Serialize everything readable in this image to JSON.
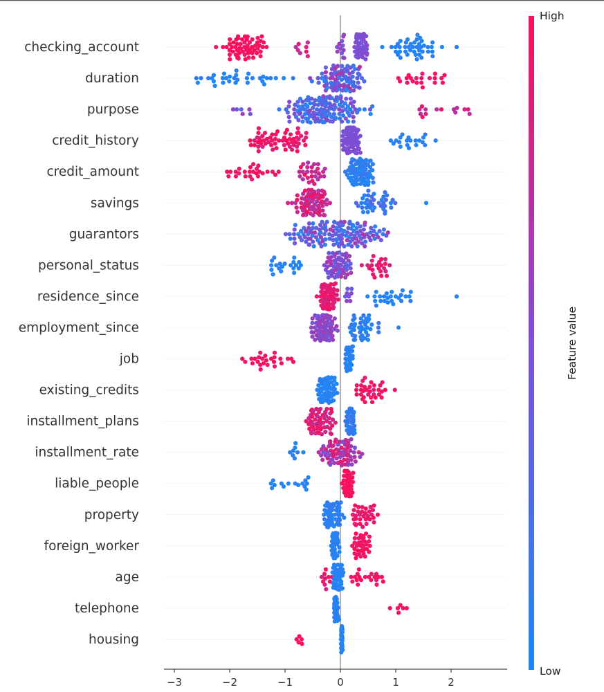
{
  "chart_data": {
    "type": "scatter",
    "subtype": "beeswarm",
    "title": "",
    "xlabel": "",
    "xlim": [
      -3.3,
      2.95
    ],
    "xticks": [
      -3,
      -2,
      -1,
      0,
      1,
      2
    ],
    "xtick_labels": [
      "−3",
      "−2",
      "−1",
      "0",
      "1",
      "2"
    ],
    "colorbar": {
      "label": "Feature value",
      "high_label": "High",
      "low_label": "Low",
      "low_color": "#1e88f5",
      "mid_color": "#7c4fd6",
      "high_color": "#ff0d57"
    },
    "features": [
      {
        "name": "checking_account",
        "groups": [
          {
            "range": [
              -2.4,
              -1.1
            ],
            "n": 60,
            "fv": 0.97,
            "spread": 0.05
          },
          {
            "range": [
              -1.0,
              -0.4
            ],
            "n": 8,
            "fv": 0.8,
            "spread": 0.1
          },
          {
            "range": [
              -0.1,
              0.15
            ],
            "n": 12,
            "fv": 0.55,
            "spread": 0.1
          },
          {
            "range": [
              0.2,
              0.55
            ],
            "n": 60,
            "fv": 0.5,
            "spread": 0.05
          },
          {
            "range": [
              0.6,
              1.9
            ],
            "n": 42,
            "fv": 0.05,
            "spread": 0.05
          },
          {
            "range": [
              2.1,
              2.12
            ],
            "n": 1,
            "fv": 0.05,
            "spread": 0
          }
        ]
      },
      {
        "name": "duration",
        "groups": [
          {
            "range": [
              -2.9,
              -0.7
            ],
            "n": 32,
            "fv": 0.05,
            "spread": 0.05
          },
          {
            "range": [
              -0.6,
              0.6
            ],
            "n": 95,
            "fv": 0.4,
            "spread": 0.35
          },
          {
            "range": [
              0.6,
              2.2
            ],
            "n": 20,
            "fv": 0.95,
            "spread": 0.05
          }
        ]
      },
      {
        "name": "purpose",
        "groups": [
          {
            "range": [
              -2.1,
              -1.4
            ],
            "n": 6,
            "fv": 0.5,
            "spread": 0.15
          },
          {
            "range": [
              -1.4,
              0.8
            ],
            "n": 150,
            "fv": 0.3,
            "spread": 0.3
          },
          {
            "range": [
              0.8,
              2.7
            ],
            "n": 14,
            "fv": 0.85,
            "spread": 0.15
          }
        ]
      },
      {
        "name": "credit_history",
        "groups": [
          {
            "range": [
              -1.95,
              -0.3
            ],
            "n": 60,
            "fv": 0.92,
            "spread": 0.08
          },
          {
            "range": [
              -0.05,
              0.4
            ],
            "n": 85,
            "fv": 0.5,
            "spread": 0.03
          },
          {
            "range": [
              0.45,
              1.95
            ],
            "n": 20,
            "fv": 0.05,
            "spread": 0.03
          }
        ]
      },
      {
        "name": "credit_amount",
        "groups": [
          {
            "range": [
              -2.4,
              -0.9
            ],
            "n": 25,
            "fv": 0.95,
            "spread": 0.05
          },
          {
            "range": [
              -0.9,
              -0.1
            ],
            "n": 28,
            "fv": 0.8,
            "spread": 0.15
          },
          {
            "range": [
              0.0,
              0.7
            ],
            "n": 85,
            "fv": 0.08,
            "spread": 0.08
          }
        ]
      },
      {
        "name": "savings",
        "groups": [
          {
            "range": [
              -1.0,
              0.0
            ],
            "n": 85,
            "fv": 0.82,
            "spread": 0.18
          },
          {
            "range": [
              0.2,
              1.1
            ],
            "n": 38,
            "fv": 0.15,
            "spread": 0.15
          },
          {
            "range": [
              1.55,
              1.56
            ],
            "n": 1,
            "fv": 0.05,
            "spread": 0
          }
        ]
      },
      {
        "name": "guarantors",
        "groups": [
          {
            "range": [
              -1.2,
              1.1
            ],
            "n": 140,
            "fv": 0.35,
            "spread": 0.35
          }
        ]
      },
      {
        "name": "personal_status",
        "groups": [
          {
            "range": [
              -1.6,
              -0.4
            ],
            "n": 20,
            "fv": 0.05,
            "spread": 0.05
          },
          {
            "range": [
              -0.4,
              0.3
            ],
            "n": 65,
            "fv": 0.5,
            "spread": 0.2
          },
          {
            "range": [
              0.3,
              1.1
            ],
            "n": 22,
            "fv": 0.9,
            "spread": 0.08
          }
        ]
      },
      {
        "name": "residence_since",
        "groups": [
          {
            "range": [
              -0.45,
              0.0
            ],
            "n": 85,
            "fv": 0.9,
            "spread": 0.08
          },
          {
            "range": [
              0.0,
              0.3
            ],
            "n": 8,
            "fv": 0.5,
            "spread": 0.1
          },
          {
            "range": [
              0.3,
              1.55
            ],
            "n": 25,
            "fv": 0.05,
            "spread": 0.05
          },
          {
            "range": [
              2.1,
              2.11
            ],
            "n": 1,
            "fv": 0.05,
            "spread": 0
          }
        ]
      },
      {
        "name": "employment_since",
        "groups": [
          {
            "range": [
              -0.6,
              0.0
            ],
            "n": 85,
            "fv": 0.55,
            "spread": 0.1
          },
          {
            "range": [
              0.0,
              0.8
            ],
            "n": 42,
            "fv": 0.08,
            "spread": 0.08
          },
          {
            "range": [
              1.05,
              1.06
            ],
            "n": 1,
            "fv": 0.05,
            "spread": 0
          }
        ]
      },
      {
        "name": "job",
        "groups": [
          {
            "range": [
              -2.1,
              -0.35
            ],
            "n": 25,
            "fv": 0.95,
            "spread": 0.05
          },
          {
            "range": [
              0.05,
              0.25
            ],
            "n": 45,
            "fv": 0.05,
            "spread": 0.03
          }
        ]
      },
      {
        "name": "existing_credits",
        "groups": [
          {
            "range": [
              -0.45,
              0.0
            ],
            "n": 75,
            "fv": 0.05,
            "spread": 0.04
          },
          {
            "range": [
              0.0,
              1.05
            ],
            "n": 32,
            "fv": 0.95,
            "spread": 0.05
          }
        ]
      },
      {
        "name": "installment_plans",
        "groups": [
          {
            "range": [
              -0.7,
              0.0
            ],
            "n": 65,
            "fv": 0.85,
            "spread": 0.12
          },
          {
            "range": [
              0.0,
              0.35
            ],
            "n": 40,
            "fv": 0.1,
            "spread": 0.1
          }
        ]
      },
      {
        "name": "installment_rate",
        "groups": [
          {
            "range": [
              -1.05,
              -0.5
            ],
            "n": 8,
            "fv": 0.05,
            "spread": 0.05
          },
          {
            "range": [
              -0.5,
              0.45
            ],
            "n": 85,
            "fv": 0.7,
            "spread": 0.25
          }
        ]
      },
      {
        "name": "liable_people",
        "groups": [
          {
            "range": [
              -1.6,
              -0.3
            ],
            "n": 15,
            "fv": 0.05,
            "spread": 0.03
          },
          {
            "range": [
              0.0,
              0.25
            ],
            "n": 55,
            "fv": 0.97,
            "spread": 0.03
          }
        ]
      },
      {
        "name": "property",
        "groups": [
          {
            "range": [
              -0.35,
              0.1
            ],
            "n": 65,
            "fv": 0.08,
            "spread": 0.06
          },
          {
            "range": [
              0.1,
              0.75
            ],
            "n": 32,
            "fv": 0.93,
            "spread": 0.06
          }
        ]
      },
      {
        "name": "foreign_worker",
        "groups": [
          {
            "range": [
              -0.2,
              0.0
            ],
            "n": 60,
            "fv": 0.05,
            "spread": 0.04
          },
          {
            "range": [
              0.0,
              0.75
            ],
            "n": 35,
            "fv": 0.95,
            "spread": 0.05
          }
        ]
      },
      {
        "name": "age",
        "groups": [
          {
            "range": [
              -0.4,
              -0.1
            ],
            "n": 10,
            "fv": 0.9,
            "spread": 0.08
          },
          {
            "range": [
              -0.2,
              0.1
            ],
            "n": 60,
            "fv": 0.05,
            "spread": 0.05
          },
          {
            "range": [
              0.1,
              1.0
            ],
            "n": 20,
            "fv": 0.95,
            "spread": 0.05
          }
        ]
      },
      {
        "name": "telephone",
        "groups": [
          {
            "range": [
              -0.15,
              0.0
            ],
            "n": 40,
            "fv": 0.05,
            "spread": 0.03
          },
          {
            "range": [
              0.7,
              1.35
            ],
            "n": 6,
            "fv": 0.97,
            "spread": 0.02
          }
        ]
      },
      {
        "name": "housing",
        "groups": [
          {
            "range": [
              -0.85,
              -0.6
            ],
            "n": 5,
            "fv": 0.97,
            "spread": 0.02
          },
          {
            "range": [
              0.0,
              0.05
            ],
            "n": 50,
            "fv": 0.05,
            "spread": 0.02
          }
        ]
      }
    ]
  }
}
